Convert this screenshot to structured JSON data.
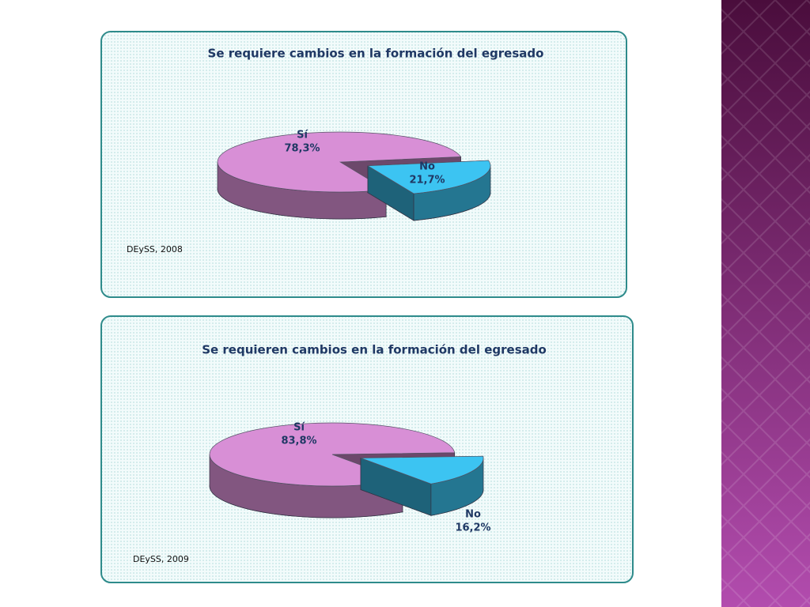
{
  "chart_data": [
    {
      "type": "pie",
      "title": "Se requiere cambios en la formación del egresado",
      "categories": [
        "Sí",
        "No"
      ],
      "values": [
        78.3,
        21.7
      ],
      "value_labels": [
        "78,3%",
        "21,7%"
      ],
      "colors": [
        "#d88fd6",
        "#3cc4f2"
      ],
      "source": "DEySS, 2008"
    },
    {
      "type": "pie",
      "title": "Se requieren cambios en la formación del egresado",
      "categories": [
        "Sí",
        "No"
      ],
      "values": [
        83.8,
        16.2
      ],
      "value_labels": [
        "83,8%",
        "16,2%"
      ],
      "colors": [
        "#d88fd6",
        "#3cc4f2"
      ],
      "source": "DEySS, 2009"
    }
  ]
}
